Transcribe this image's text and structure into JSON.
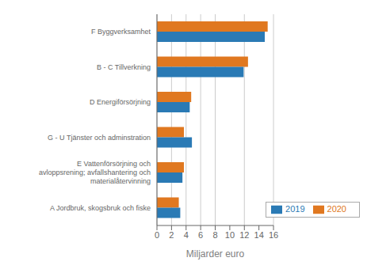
{
  "chart_data": {
    "type": "bar",
    "orientation": "horizontal",
    "categories": [
      "A Jordbruk, skogsbruk och fiske",
      "E Vattenförsörjning och\navloppsrening; avfallshantering och\nmaterialåtervinning",
      "G - U Tjänster och adminstration",
      "D Energiförsörjning",
      "B - C Tillverkning",
      "F Byggverksamhet"
    ],
    "series": [
      {
        "name": "2020",
        "color": "#e07820",
        "values": [
          3.0,
          3.7,
          3.7,
          4.7,
          12.5,
          15.2
        ]
      },
      {
        "name": "2019",
        "color": "#2a7ab5",
        "values": [
          3.2,
          3.5,
          4.8,
          4.5,
          11.9,
          14.8
        ]
      }
    ],
    "xlabel": "Miljarder euro",
    "xlim": [
      0,
      16
    ],
    "xticks": [
      0,
      2,
      4,
      6,
      8,
      10,
      12,
      14,
      16
    ],
    "grid": true,
    "legend": "lower right"
  }
}
